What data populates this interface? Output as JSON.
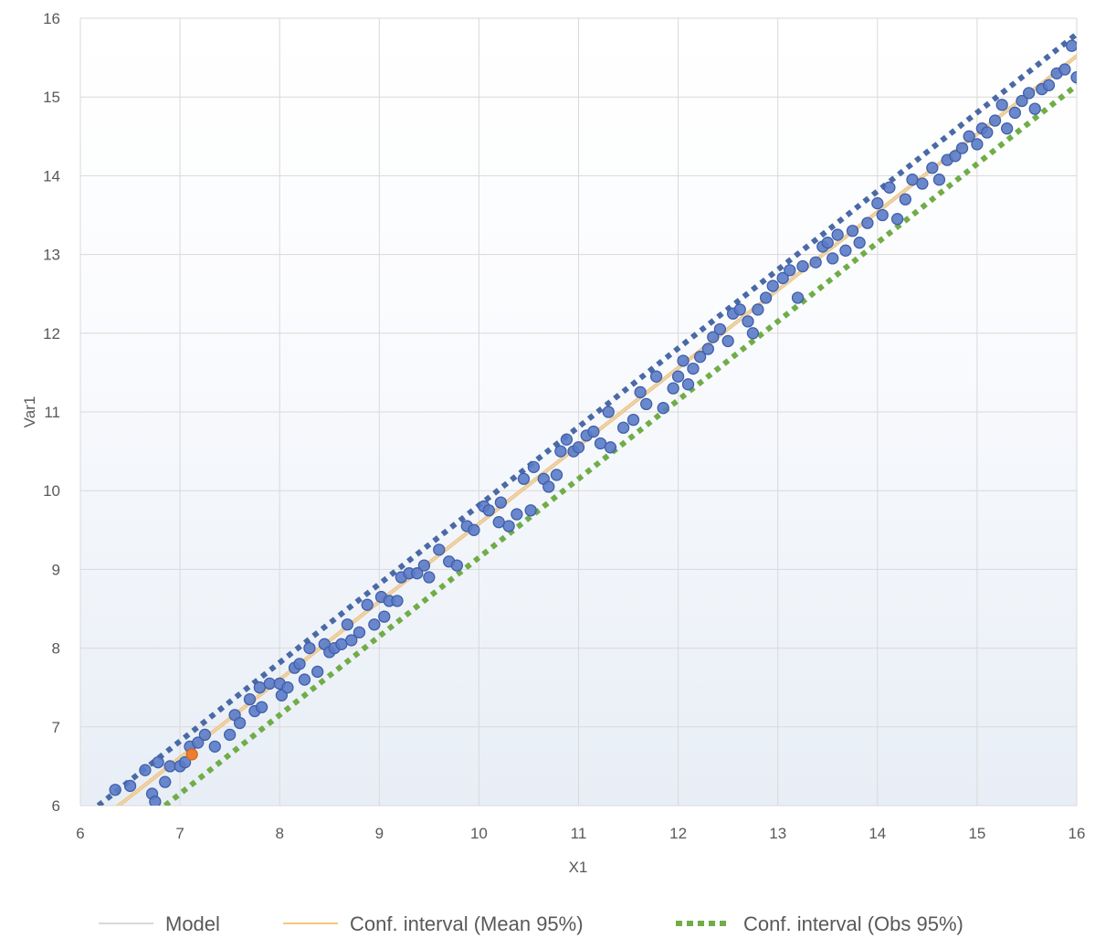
{
  "chart_data": {
    "type": "scatter",
    "title": "",
    "xlabel": "X1",
    "ylabel": "Var1",
    "xlim": [
      6,
      16
    ],
    "ylim": [
      6,
      16
    ],
    "x_ticks": [
      "6",
      "7",
      "8",
      "9",
      "10",
      "11",
      "12",
      "13",
      "14",
      "15",
      "16"
    ],
    "y_ticks": [
      "6",
      "7",
      "8",
      "9",
      "10",
      "11",
      "12",
      "13",
      "14",
      "15",
      "16"
    ],
    "grid": true,
    "legend_position": "bottom",
    "legend": [
      {
        "name": "Model",
        "color": "#d9d9d9",
        "style": "solid"
      },
      {
        "name": "Conf. interval (Mean 95%)",
        "color": "#f5c77e",
        "style": "solid"
      },
      {
        "name": "Conf. interval (Obs 95%)",
        "color": "#70ad47",
        "style": "dotted"
      }
    ],
    "lines": {
      "model": {
        "x": [
          6,
          16
        ],
        "y": [
          5.62,
          15.52
        ],
        "color": "#d9d9d9"
      },
      "mean_ci_upper": {
        "x": [
          6,
          16
        ],
        "y": [
          5.64,
          15.54
        ],
        "color": "#f5c77e"
      },
      "mean_ci_lower": {
        "x": [
          6,
          16
        ],
        "y": [
          5.6,
          15.5
        ],
        "color": "#f5c77e"
      },
      "obs_ci_upper": {
        "x": [
          6.18,
          16
        ],
        "y": [
          6.0,
          15.8
        ],
        "color": "#4a6aa5"
      },
      "obs_ci_lower": {
        "x": [
          6.85,
          16
        ],
        "y": [
          6.0,
          15.15
        ],
        "color": "#70ad47"
      }
    },
    "point_color": "#5b7bc8",
    "highlight_color": "#ed7d31",
    "highlight_point": {
      "x": 7.12,
      "y": 6.65
    },
    "points": [
      [
        6.35,
        6.2
      ],
      [
        6.5,
        6.25
      ],
      [
        6.65,
        6.45
      ],
      [
        6.72,
        6.15
      ],
      [
        6.75,
        6.05
      ],
      [
        6.78,
        6.55
      ],
      [
        6.85,
        6.3
      ],
      [
        6.9,
        6.5
      ],
      [
        7.0,
        6.5
      ],
      [
        7.05,
        6.55
      ],
      [
        7.1,
        6.75
      ],
      [
        7.18,
        6.8
      ],
      [
        7.25,
        6.9
      ],
      [
        7.35,
        6.75
      ],
      [
        7.5,
        6.9
      ],
      [
        7.55,
        7.15
      ],
      [
        7.6,
        7.05
      ],
      [
        7.7,
        7.35
      ],
      [
        7.75,
        7.2
      ],
      [
        7.8,
        7.5
      ],
      [
        7.82,
        7.25
      ],
      [
        7.9,
        7.55
      ],
      [
        8.0,
        7.55
      ],
      [
        8.02,
        7.4
      ],
      [
        8.08,
        7.5
      ],
      [
        8.15,
        7.75
      ],
      [
        8.2,
        7.8
      ],
      [
        8.25,
        7.6
      ],
      [
        8.3,
        8.0
      ],
      [
        8.38,
        7.7
      ],
      [
        8.45,
        8.05
      ],
      [
        8.5,
        7.95
      ],
      [
        8.55,
        8.0
      ],
      [
        8.62,
        8.05
      ],
      [
        8.68,
        8.3
      ],
      [
        8.72,
        8.1
      ],
      [
        8.8,
        8.2
      ],
      [
        8.88,
        8.55
      ],
      [
        8.95,
        8.3
      ],
      [
        9.02,
        8.65
      ],
      [
        9.05,
        8.4
      ],
      [
        9.1,
        8.6
      ],
      [
        9.18,
        8.6
      ],
      [
        9.22,
        8.9
      ],
      [
        9.3,
        8.95
      ],
      [
        9.38,
        8.95
      ],
      [
        9.45,
        9.05
      ],
      [
        9.5,
        8.9
      ],
      [
        9.6,
        9.25
      ],
      [
        9.7,
        9.1
      ],
      [
        9.78,
        9.05
      ],
      [
        9.88,
        9.55
      ],
      [
        9.95,
        9.5
      ],
      [
        10.05,
        9.8
      ],
      [
        10.1,
        9.75
      ],
      [
        10.2,
        9.6
      ],
      [
        10.22,
        9.85
      ],
      [
        10.3,
        9.55
      ],
      [
        10.38,
        9.7
      ],
      [
        10.45,
        10.15
      ],
      [
        10.52,
        9.75
      ],
      [
        10.55,
        10.3
      ],
      [
        10.65,
        10.15
      ],
      [
        10.7,
        10.05
      ],
      [
        10.78,
        10.2
      ],
      [
        10.82,
        10.5
      ],
      [
        10.88,
        10.65
      ],
      [
        10.95,
        10.5
      ],
      [
        11.0,
        10.55
      ],
      [
        11.08,
        10.7
      ],
      [
        11.15,
        10.75
      ],
      [
        11.22,
        10.6
      ],
      [
        11.3,
        11.0
      ],
      [
        11.32,
        10.55
      ],
      [
        11.45,
        10.8
      ],
      [
        11.55,
        10.9
      ],
      [
        11.62,
        11.25
      ],
      [
        11.68,
        11.1
      ],
      [
        11.78,
        11.45
      ],
      [
        11.85,
        11.05
      ],
      [
        11.95,
        11.3
      ],
      [
        12.0,
        11.45
      ],
      [
        12.05,
        11.65
      ],
      [
        12.1,
        11.35
      ],
      [
        12.15,
        11.55
      ],
      [
        12.22,
        11.7
      ],
      [
        12.3,
        11.8
      ],
      [
        12.35,
        11.95
      ],
      [
        12.42,
        12.05
      ],
      [
        12.5,
        11.9
      ],
      [
        12.55,
        12.25
      ],
      [
        12.62,
        12.3
      ],
      [
        12.7,
        12.15
      ],
      [
        12.75,
        12.0
      ],
      [
        12.8,
        12.3
      ],
      [
        12.88,
        12.45
      ],
      [
        12.95,
        12.6
      ],
      [
        13.05,
        12.7
      ],
      [
        13.12,
        12.8
      ],
      [
        13.2,
        12.45
      ],
      [
        13.25,
        12.85
      ],
      [
        13.38,
        12.9
      ],
      [
        13.45,
        13.1
      ],
      [
        13.5,
        13.15
      ],
      [
        13.55,
        12.95
      ],
      [
        13.6,
        13.25
      ],
      [
        13.68,
        13.05
      ],
      [
        13.75,
        13.3
      ],
      [
        13.82,
        13.15
      ],
      [
        13.9,
        13.4
      ],
      [
        14.0,
        13.65
      ],
      [
        14.05,
        13.5
      ],
      [
        14.12,
        13.85
      ],
      [
        14.2,
        13.45
      ],
      [
        14.28,
        13.7
      ],
      [
        14.35,
        13.95
      ],
      [
        14.45,
        13.9
      ],
      [
        14.55,
        14.1
      ],
      [
        14.62,
        13.95
      ],
      [
        14.7,
        14.2
      ],
      [
        14.78,
        14.25
      ],
      [
        14.85,
        14.35
      ],
      [
        14.92,
        14.5
      ],
      [
        15.0,
        14.4
      ],
      [
        15.05,
        14.6
      ],
      [
        15.1,
        14.55
      ],
      [
        15.18,
        14.7
      ],
      [
        15.25,
        14.9
      ],
      [
        15.3,
        14.6
      ],
      [
        15.38,
        14.8
      ],
      [
        15.45,
        14.95
      ],
      [
        15.52,
        15.05
      ],
      [
        15.58,
        14.85
      ],
      [
        15.65,
        15.1
      ],
      [
        15.72,
        15.15
      ],
      [
        15.8,
        15.3
      ],
      [
        15.88,
        15.35
      ],
      [
        15.95,
        15.65
      ],
      [
        16.0,
        15.25
      ]
    ]
  }
}
